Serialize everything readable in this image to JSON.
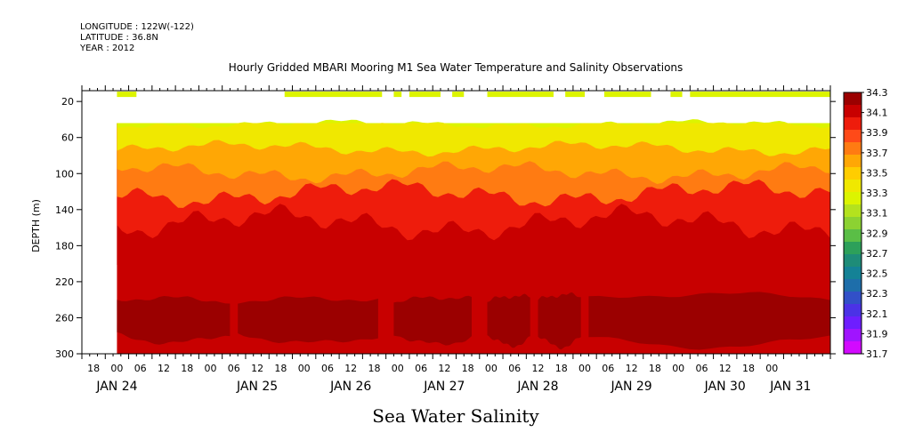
{
  "header": {
    "longitude": "LONGITUDE : 122W(-122)",
    "latitude": "LATITUDE : 36.8N",
    "year": "YEAR : 2012"
  },
  "chart_data": {
    "type": "heatmap",
    "title": "Hourly Gridded MBARI Mooring M1 Sea Water Temperature and Salinity Observations",
    "xlabel": "Sea Water Salinity",
    "ylabel": "DEPTH (m)",
    "x_ticks_hours": [
      "18",
      "00",
      "06",
      "12",
      "18",
      "00",
      "06",
      "12",
      "18",
      "00",
      "06",
      "12",
      "18",
      "00",
      "06",
      "12",
      "18",
      "00",
      "06",
      "12",
      "18",
      "00",
      "06",
      "12",
      "18",
      "00",
      "06",
      "12",
      "18",
      "00"
    ],
    "x_day_labels": [
      {
        "label": "JAN 24",
        "day": 0
      },
      {
        "label": "JAN 25",
        "day": 1.5
      },
      {
        "label": "JAN 26",
        "day": 2.5
      },
      {
        "label": "JAN 27",
        "day": 3.5
      },
      {
        "label": "JAN 28",
        "day": 4.5
      },
      {
        "label": "JAN 29",
        "day": 5.5
      },
      {
        "label": "JAN 30",
        "day": 6.5
      },
      {
        "label": "JAN 31",
        "day": 7.2
      }
    ],
    "xlim_hours": [
      0,
      192
    ],
    "y_ticks": [
      20,
      60,
      100,
      140,
      180,
      220,
      260,
      300
    ],
    "ylim": [
      300,
      8
    ],
    "y_inverted": true,
    "colorbar_levels": [
      "34.3",
      "34.1",
      "33.9",
      "33.7",
      "33.5",
      "33.3",
      "33.1",
      "32.9",
      "32.7",
      "32.5",
      "32.3",
      "32.1",
      "31.9",
      "31.7"
    ],
    "colorbar_colors": [
      "#9b0000",
      "#c80000",
      "#ee1c0c",
      "#ff4a18",
      "#ff7b12",
      "#ffa705",
      "#ffcd00",
      "#f0e800",
      "#dcf400",
      "#b4e21e",
      "#8cd232",
      "#5abe46",
      "#2da05a",
      "#1e8c78",
      "#148296",
      "#1e6eaa",
      "#3250c8",
      "#4b32e6",
      "#6e1eff",
      "#a014ff",
      "#d20aff"
    ],
    "data_start_hour": 9,
    "near_surface_depth": 12,
    "near_surface_salinity": 33.2,
    "near_surface_segments_hours": [
      [
        9,
        14
      ],
      [
        52,
        77
      ],
      [
        80,
        82
      ],
      [
        84,
        92
      ],
      [
        95,
        98
      ],
      [
        104,
        121
      ],
      [
        124,
        129
      ],
      [
        134,
        146
      ],
      [
        151,
        154
      ],
      [
        156,
        192
      ]
    ],
    "layer_boundaries_depth": [
      {
        "salinity_above": 33.2,
        "salinity_below": 33.4,
        "depth": 45
      },
      {
        "salinity_above": 33.4,
        "salinity_below": 33.6,
        "depth": 72
      },
      {
        "salinity_above": 33.6,
        "salinity_below": 33.8,
        "depth": 98
      },
      {
        "salinity_above": 33.8,
        "salinity_below": 34.0,
        "depth": 122
      },
      {
        "salinity_above": 34.0,
        "salinity_below": 34.2,
        "depth": 155
      },
      {
        "salinity_above": 34.2,
        "salinity_below": 34.35,
        "depth": 205
      }
    ],
    "max_salinity_core_depth": [
      240,
      280
    ],
    "max_salinity": 34.35
  }
}
